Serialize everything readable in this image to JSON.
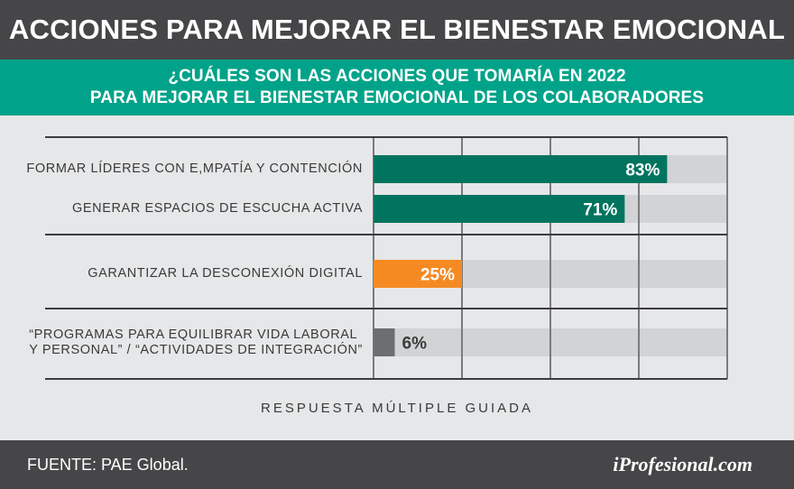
{
  "header": {
    "title": "ACCIONES PARA MEJORAR EL BIENESTAR EMOCIONAL"
  },
  "subheader": {
    "line1": "¿CUÁLES SON LAS ACCIONES QUE TOMARÍA EN 2022",
    "line2": "PARA MEJORAR EL BIENESTAR EMOCIONAL DE LOS COLABORADORES"
  },
  "chart_data": {
    "type": "bar",
    "orientation": "horizontal",
    "xlim": [
      0,
      100
    ],
    "grid": true,
    "categories": [
      "FORMAR LÍDERES CON E,MPATÍA Y CONTENCIÓN",
      "GENERAR ESPACIOS DE ESCUCHA ACTIVA",
      "GARANTIZAR LA DESCONEXIÓN DIGITAL",
      "“PROGRAMAS PARA EQUILIBRAR VIDA LABORAL Y PERSONAL” / “ACTIVIDADES DE INTEGRACIÓN”"
    ],
    "category_lines": [
      [
        "FORMAR LÍDERES CON E,MPATÍA Y CONTENCIÓN"
      ],
      [
        "GENERAR ESPACIOS DE ESCUCHA ACTIVA"
      ],
      [
        "GARANTIZAR LA DESCONEXIÓN DIGITAL"
      ],
      [
        "“PROGRAMAS PARA EQUILIBRAR VIDA LABORAL",
        "Y PERSONAL” / “ACTIVIDADES DE INTEGRACIÓN”"
      ]
    ],
    "values": [
      83,
      71,
      25,
      6
    ],
    "value_labels": [
      "83%",
      "71%",
      "25%",
      "6%"
    ],
    "colors": [
      "#00745f",
      "#00745f",
      "#f58a23",
      "#6d6e71"
    ],
    "track_color": "#d1d3d4"
  },
  "footnote": "RESPUESTA MÚLTIPLE GUIADA",
  "footer": {
    "source": "FUENTE: PAE Global.",
    "brand": "iProfesional.com"
  }
}
